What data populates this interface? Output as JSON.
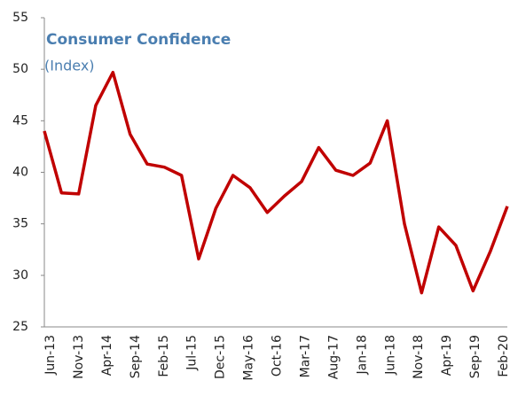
{
  "chart_data": {
    "type": "line",
    "title": "Consumer Confidence",
    "subtitle": "(Index)",
    "xticks": [
      "Jun-13",
      "Nov-13",
      "Apr-14",
      "Sep-14",
      "Feb-15",
      "Jul-15",
      "Dec-15",
      "May-16",
      "Oct-16",
      "Mar-17",
      "Aug-17",
      "Jan-18",
      "Jun-18",
      "Nov-18",
      "Apr-19",
      "Sep-19",
      "Feb-20"
    ],
    "values": [
      44,
      38,
      37.9,
      46.5,
      49.7,
      43.7,
      40.8,
      40.5,
      39.7,
      31.6,
      36.5,
      39.7,
      38.5,
      36.1,
      37.7,
      39.1,
      42.4,
      40.2,
      39.7,
      40.9,
      45,
      35,
      28.3,
      34.7,
      32.9,
      28.5,
      32.3,
      36.7
    ],
    "color": "#c00000",
    "ylim": [
      25,
      55
    ],
    "yticks": [
      25,
      30,
      35,
      40,
      45,
      50,
      55
    ]
  }
}
